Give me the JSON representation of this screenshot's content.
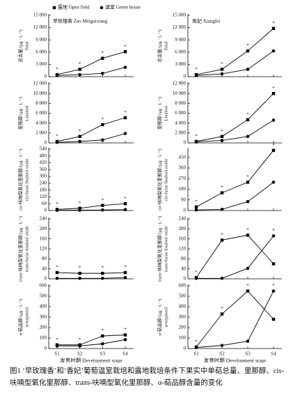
{
  "chart_data": [
    {
      "type": "line",
      "title": "早玫瑰香 Zao Meiguixiang",
      "ylabel": [
        "总含量/(μg · L⁻¹)",
        "Total"
      ],
      "ylim": [
        0,
        15000
      ],
      "yticks": [
        0,
        {
          "value": 3000,
          "label": "3 000"
        },
        {
          "value": 6000,
          "label": "6 000"
        },
        {
          "value": 9000,
          "label": "9 000"
        },
        {
          "value": 12000,
          "label": "12 000"
        },
        {
          "value": 15000,
          "label": "15 000"
        }
      ],
      "significance": [
        "*",
        "*",
        "*",
        "*"
      ],
      "series": [
        {
          "name": "露地 Open field",
          "color": "#000000",
          "marker": "square",
          "values": [
            500,
            1800,
            4500,
            6100
          ]
        },
        {
          "name": "温室 Green house",
          "color": "#000000",
          "marker": "circle",
          "values": [
            300,
            500,
            800,
            2300
          ]
        }
      ]
    },
    {
      "type": "line",
      "title": "香妃 Xiangfei",
      "ylabel": [
        "总含量/(μg · L⁻¹)",
        "Total"
      ],
      "ylim": [
        0,
        15000
      ],
      "yticks": [
        0,
        {
          "value": 3000,
          "label": "3 000"
        },
        {
          "value": 6000,
          "label": "6 000"
        },
        {
          "value": 9000,
          "label": "9 000"
        },
        {
          "value": 12000,
          "label": "12 000"
        },
        {
          "value": 15000,
          "label": "15 000"
        }
      ],
      "significance": [
        "*",
        "*",
        "*",
        "*"
      ],
      "series": [
        {
          "color": "#000000",
          "marker": "square",
          "values": [
            500,
            1800,
            6300,
            11800
          ]
        },
        {
          "color": "#000000",
          "marker": "circle",
          "values": [
            300,
            700,
            1800,
            6300
          ]
        }
      ]
    },
    {
      "type": "line",
      "ylabel": [
        "里那醇/(μg · L⁻¹)",
        "Linalool"
      ],
      "ylim": [
        0,
        12000
      ],
      "yticks": [
        0,
        {
          "value": 2000,
          "label": "2 000"
        },
        {
          "value": 4000,
          "label": "4 000"
        },
        {
          "value": 6000,
          "label": "6 000"
        },
        {
          "value": 8000,
          "label": "8 000"
        },
        {
          "value": 10000,
          "label": "10 000"
        },
        {
          "value": 12000,
          "label": "12 000"
        }
      ],
      "significance": [
        "*",
        "*",
        "*",
        "*"
      ],
      "series": [
        {
          "color": "#000000",
          "marker": "square",
          "values": [
            300,
            1300,
            3700,
            5100
          ]
        },
        {
          "color": "#000000",
          "marker": "circle",
          "values": [
            100,
            300,
            600,
            1900
          ]
        }
      ]
    },
    {
      "type": "line",
      "ylabel": [
        "里那醇/(μg · L⁻¹)",
        "Linalool"
      ],
      "ylim": [
        0,
        12000
      ],
      "yticks": [
        0,
        {
          "value": 2000,
          "label": "2 000"
        },
        {
          "value": 4000,
          "label": "4 000"
        },
        {
          "value": 6000,
          "label": "6 000"
        },
        {
          "value": 8000,
          "label": "8 000"
        },
        {
          "value": 10000,
          "label": "10 000"
        },
        {
          "value": 12000,
          "label": "12 000"
        }
      ],
      "significance": [
        "*",
        "*",
        "*",
        "*"
      ],
      "series": [
        {
          "color": "#000000",
          "marker": "square",
          "values": [
            300,
            1300,
            4700,
            10000
          ]
        },
        {
          "color": "#000000",
          "marker": "circle",
          "values": [
            200,
            500,
            1300,
            4600
          ]
        }
      ]
    },
    {
      "type": "line",
      "ylabel": [
        "cis-呋喃型氧化里那醇/(μg · L⁻¹)",
        "cis-furan linalool oxide"
      ],
      "ylim": [
        0,
        540
      ],
      "yticks": [
        0,
        60,
        120,
        180,
        240,
        300,
        360,
        420,
        480,
        540
      ],
      "significance": [
        "*",
        "*",
        "*",
        "*"
      ],
      "series": [
        {
          "color": "#000000",
          "marker": "square",
          "values": [
            10,
            20,
            45,
            60
          ]
        },
        {
          "color": "#000000",
          "marker": "circle",
          "values": [
            2,
            3,
            5,
            8
          ]
        }
      ]
    },
    {
      "type": "line",
      "ylabel": [
        "cis-呋喃型氧化里那醇/(μg · L⁻¹)",
        "cis-furan linalool oxide"
      ],
      "ylim": [
        0,
        520
      ],
      "yticks": [
        0,
        90,
        180,
        270,
        360,
        450
      ],
      "significance": [
        "*",
        "*",
        "*",
        "*"
      ],
      "series": [
        {
          "color": "#000000",
          "marker": "square",
          "values": [
            30,
            150,
            240,
            510
          ]
        },
        {
          "color": "#000000",
          "marker": "circle",
          "values": [
            5,
            10,
            75,
            240
          ]
        }
      ]
    },
    {
      "type": "line",
      "ylabel": [
        "trans-呋喃型氧化里那醇/(μg · L⁻¹)",
        "trans-furan linalool oxide"
      ],
      "ylim": [
        0,
        240
      ],
      "yticks": [
        0,
        40,
        80,
        120,
        160,
        200,
        240
      ],
      "significance": [
        "*",
        "*",
        "*",
        "*"
      ],
      "series": [
        {
          "color": "#000000",
          "marker": "square",
          "values": [
            25,
            22,
            22,
            25
          ]
        },
        {
          "color": "#000000",
          "marker": "circle",
          "values": [
            2,
            2,
            2,
            5
          ]
        }
      ]
    },
    {
      "type": "line",
      "ylabel": [
        "trans-呋喃型氧化里那醇/(μg · L⁻¹)",
        "trans-furan linalool oxide"
      ],
      "ylim": [
        0,
        240
      ],
      "yticks": [
        0,
        40,
        80,
        120,
        160,
        200,
        240
      ],
      "significance": [
        "*",
        "*",
        "*",
        "*"
      ],
      "series": [
        {
          "color": "#000000",
          "marker": "square",
          "values": [
            5,
            155,
            175,
            60
          ]
        },
        {
          "color": "#000000",
          "marker": "circle",
          "values": [
            2,
            2,
            42,
            172
          ]
        }
      ]
    },
    {
      "type": "line",
      "ylabel": [
        "α-萜品醇/(μg · L⁻¹)",
        "α-terpineol"
      ],
      "ylim": [
        0,
        600
      ],
      "yticks": [
        0,
        100,
        200,
        300,
        400,
        500,
        600
      ],
      "categories": [
        "S1",
        "S2",
        "S3",
        "S4"
      ],
      "xlabel": "发育时期 Development stage",
      "significance": [
        "*",
        "*",
        "*",
        "*"
      ],
      "series": [
        {
          "color": "#000000",
          "marker": "square",
          "values": [
            35,
            35,
            120,
            130
          ]
        },
        {
          "color": "#000000",
          "marker": "circle",
          "values": [
            25,
            25,
            45,
            85
          ]
        }
      ]
    },
    {
      "type": "line",
      "ylabel": [
        "α-萜品醇/(μg · L⁻¹)",
        "α-terpineol"
      ],
      "ylim": [
        0,
        600
      ],
      "yticks": [
        0,
        100,
        200,
        300,
        400,
        500,
        600
      ],
      "categories": [
        "S1",
        "S2",
        "S3",
        "S4"
      ],
      "xlabel": "发育时期 Development stage",
      "significance": [
        "*",
        "*",
        "*",
        "*"
      ],
      "series": [
        {
          "color": "#000000",
          "marker": "square",
          "values": [
            15,
            330,
            550,
            280
          ]
        },
        {
          "color": "#000000",
          "marker": "circle",
          "values": [
            10,
            30,
            70,
            550
          ]
        }
      ]
    }
  ],
  "figure_caption": "图1 ‘早玫瑰香’和‘香妃’葡萄温室栽培和露地栽培条件下果实中单萜总量、里那醇、cis-呋喃型氧化里那醇、trans-呋喃型氧化里那醇、α-萜品醇含量的变化"
}
